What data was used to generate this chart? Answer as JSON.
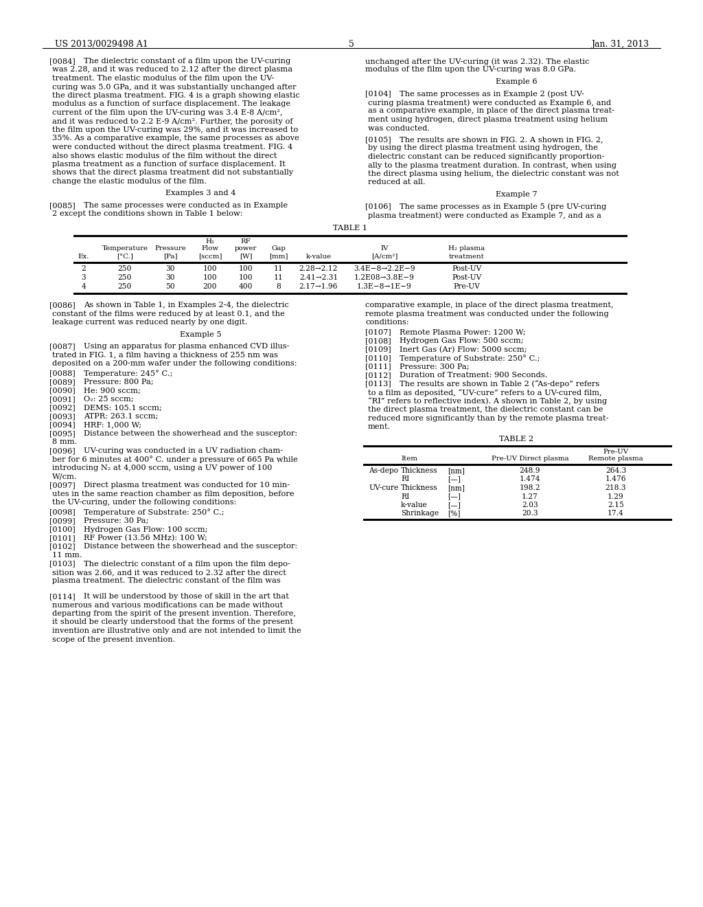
{
  "page_number": "5",
  "patent_number": "US 2013/0029498 A1",
  "patent_date": "Jan. 31, 2013",
  "background_color": "#ffffff"
}
